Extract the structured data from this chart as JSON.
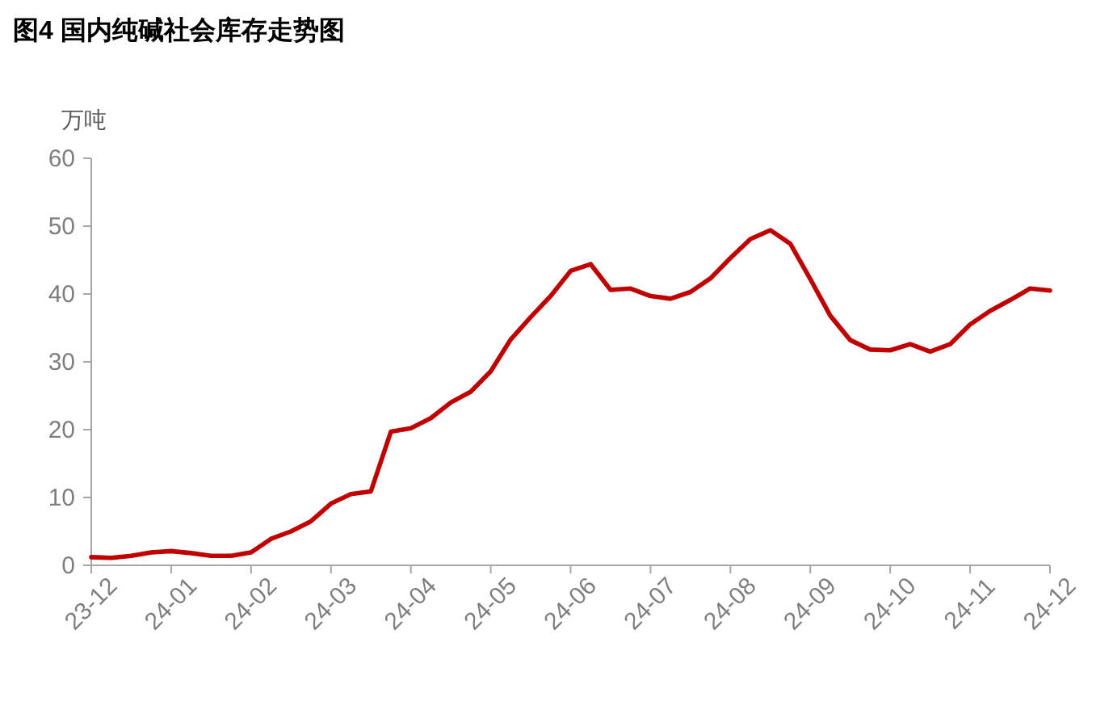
{
  "chart_data": {
    "type": "line",
    "title": "图4  国内纯碱社会库存走势图",
    "ylabel": "万吨",
    "categories": [
      "23-12",
      null,
      null,
      null,
      "24-01",
      null,
      null,
      null,
      "24-02",
      null,
      null,
      null,
      "24-03",
      null,
      null,
      null,
      "24-04",
      null,
      null,
      null,
      "24-05",
      null,
      null,
      null,
      "24-06",
      null,
      null,
      null,
      "24-07",
      null,
      null,
      null,
      "24-08",
      null,
      null,
      null,
      "24-09",
      null,
      null,
      null,
      "24-10",
      null,
      null,
      null,
      "24-11",
      null,
      null,
      null,
      "24-12"
    ],
    "series": [
      {
        "color": "#c00000",
        "values": [
          1.2,
          1.1,
          1.4,
          1.9,
          2.1,
          1.8,
          1.4,
          1.4,
          1.9,
          3.9,
          5.0,
          6.5,
          9.1,
          10.5,
          10.9,
          19.7,
          20.2,
          21.7,
          24.0,
          25.6,
          28.6,
          33.3,
          36.6,
          39.7,
          43.4,
          44.4,
          40.6,
          40.8,
          39.7,
          39.3,
          40.3,
          42.3,
          45.3,
          48.1,
          49.4,
          47.4,
          42.2,
          36.8,
          33.2,
          31.8,
          31.7,
          32.6,
          31.5,
          32.6,
          35.5,
          37.5,
          39.1,
          40.8,
          40.5
        ]
      }
    ],
    "ylim": [
      0,
      60
    ],
    "yticks": [
      0,
      10,
      20,
      30,
      40,
      50,
      60
    ],
    "grid": false,
    "marker": "none",
    "line_style": "solid"
  }
}
